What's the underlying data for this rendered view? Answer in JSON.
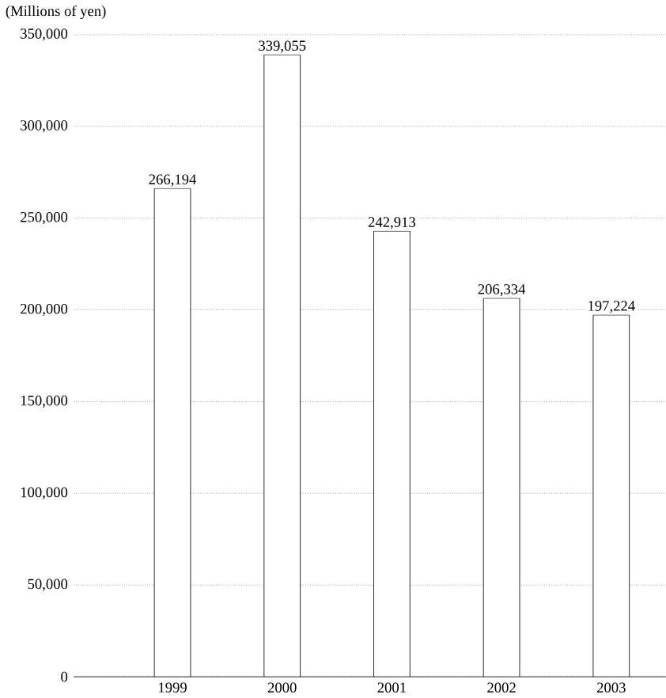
{
  "chart_data": {
    "type": "bar",
    "ylabel": "(Millions of yen)",
    "categories": [
      "1999",
      "2000",
      "2001",
      "2002",
      "2003"
    ],
    "values": [
      266194,
      339055,
      242913,
      206334,
      197224
    ],
    "value_labels": [
      "266,194",
      "339,055",
      "242,913",
      "206,334",
      "197,224"
    ],
    "color": "#ffffff",
    "ylim": [
      0,
      350000
    ],
    "yticks": [
      {
        "value": 0,
        "label": "0"
      },
      {
        "value": 50000,
        "label": "50,000"
      },
      {
        "value": 100000,
        "label": "100,000"
      },
      {
        "value": 150000,
        "label": "150,000"
      },
      {
        "value": 200000,
        "label": "200,000"
      },
      {
        "value": 250000,
        "label": "250,000"
      },
      {
        "value": 300000,
        "label": "300,000"
      },
      {
        "value": 350000,
        "label": "350,000"
      }
    ],
    "grid": "y"
  }
}
